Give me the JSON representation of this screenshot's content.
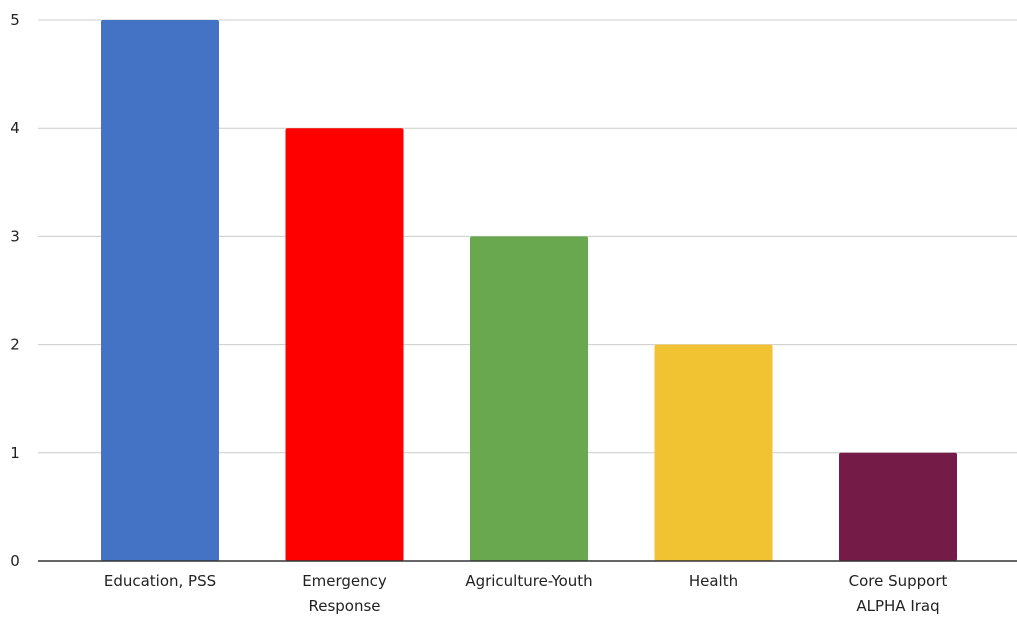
{
  "chart_data": {
    "type": "bar",
    "title": "",
    "xlabel": "",
    "ylabel": "",
    "categories": [
      [
        "Education, PSS"
      ],
      [
        "Emergency",
        "Response"
      ],
      [
        "Agriculture-Youth"
      ],
      [
        "Health"
      ],
      [
        "Core Support",
        "ALPHA Iraq"
      ]
    ],
    "values": [
      5,
      4,
      3,
      2,
      1
    ],
    "colors": [
      "#4472c4",
      "#ff0000",
      "#6aa84f",
      "#f1c232",
      "#741b47"
    ],
    "ylim": [
      0,
      5
    ],
    "yticks": [
      "0",
      "1",
      "2",
      "3",
      "4",
      "5"
    ],
    "grid": true,
    "legend": "none"
  }
}
